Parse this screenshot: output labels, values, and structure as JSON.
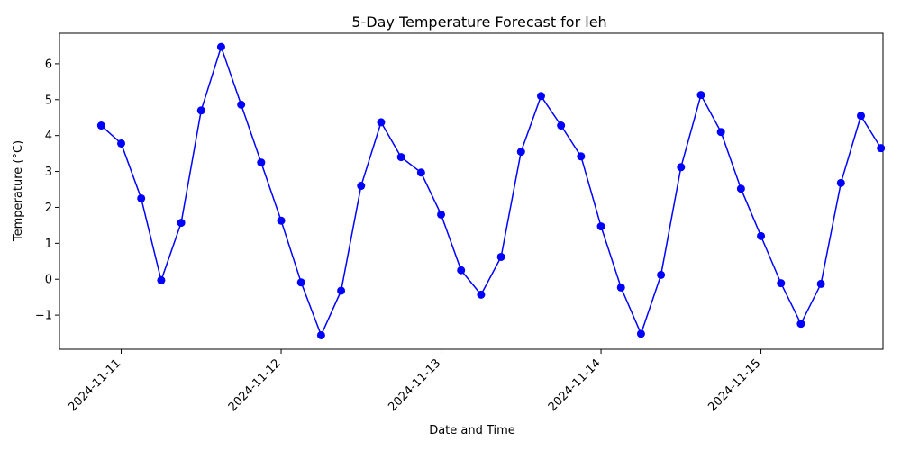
{
  "chart_data": {
    "type": "line",
    "title": "5-Day Temperature Forecast for leh",
    "xlabel": "Date and Time",
    "ylabel": "Temperature (°C)",
    "x_tick_labels": [
      "2024-11-11",
      "2024-11-12",
      "2024-11-13",
      "2024-11-14",
      "2024-11-15"
    ],
    "x_tick_days": [
      0,
      1,
      2,
      3,
      4
    ],
    "y_tick_labels": [
      "−1",
      "0",
      "1",
      "2",
      "3",
      "4",
      "5",
      "6"
    ],
    "y_tick_values": [
      -1,
      0,
      1,
      2,
      3,
      4,
      5,
      6
    ],
    "xlim": [
      -0.386,
      4.763
    ],
    "ylim": [
      -1.95,
      6.85
    ],
    "grid": false,
    "series": [
      {
        "name": "Temperature",
        "color": "#0000ff",
        "marker": "circle",
        "x_days": [
          -0.125,
          0.0,
          0.125,
          0.25,
          0.375,
          0.5,
          0.625,
          0.75,
          0.875,
          1.0,
          1.125,
          1.25,
          1.375,
          1.5,
          1.625,
          1.75,
          1.875,
          2.0,
          2.125,
          2.25,
          2.375,
          2.5,
          2.625,
          2.75,
          2.875,
          3.0,
          3.125,
          3.25,
          3.375,
          3.5,
          3.625,
          3.75,
          3.875,
          4.0,
          4.125,
          4.25,
          4.375,
          4.5,
          4.625,
          4.75
        ],
        "values": [
          4.28,
          3.78,
          2.25,
          -0.03,
          1.57,
          4.7,
          6.47,
          4.86,
          3.25,
          1.63,
          -0.09,
          -1.56,
          -0.32,
          2.6,
          4.37,
          3.4,
          2.97,
          1.8,
          0.25,
          -0.43,
          0.62,
          3.55,
          5.1,
          4.28,
          3.42,
          1.47,
          -0.23,
          -1.52,
          0.12,
          3.12,
          5.13,
          4.1,
          2.52,
          1.2,
          -0.11,
          -1.24,
          -0.13,
          2.68,
          4.55,
          3.65
        ]
      }
    ]
  }
}
